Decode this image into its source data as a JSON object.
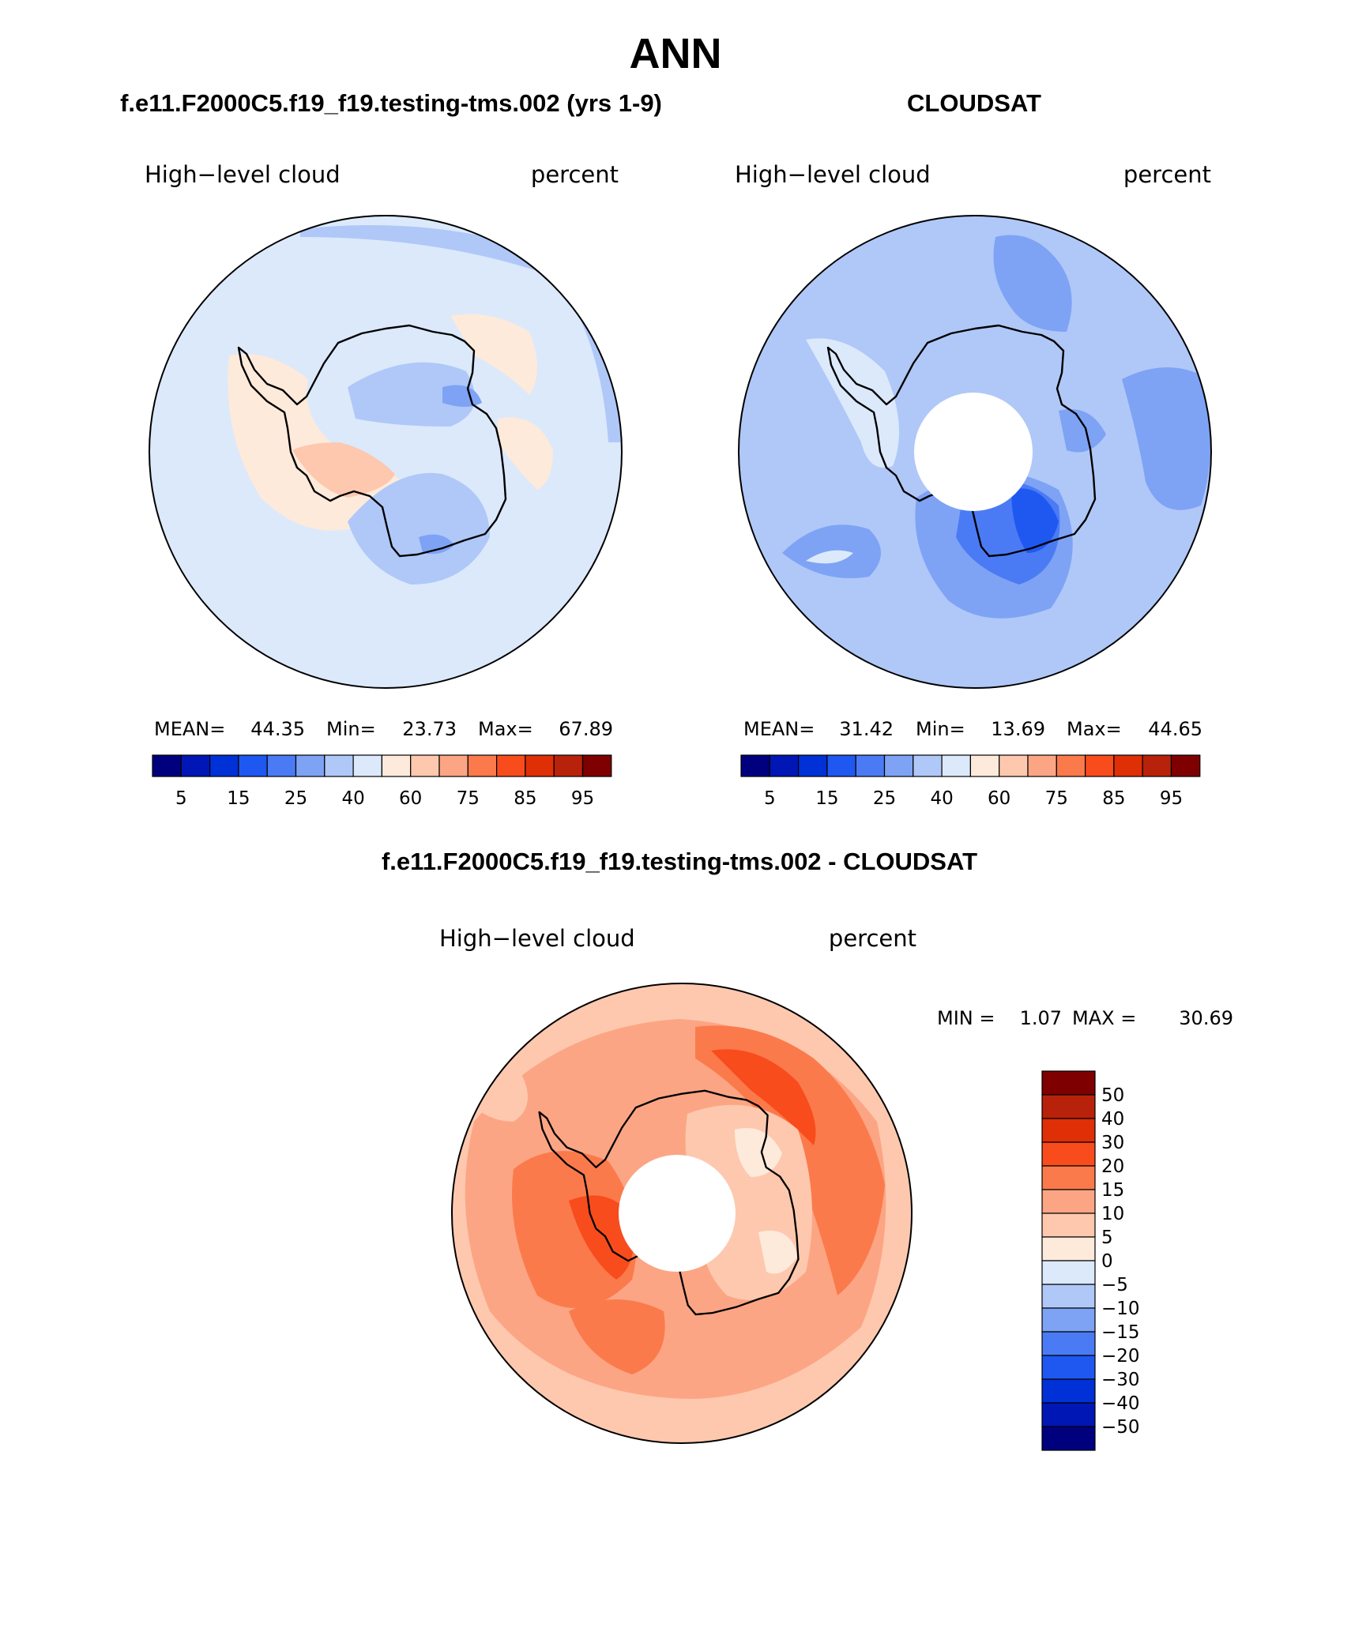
{
  "title": "ANN",
  "panels": [
    {
      "heading": "f.e11.F2000C5.f19_f19.testing-tms.002 (yrs 1-9)",
      "left_label": "High−level cloud",
      "right_label": "percent",
      "stats": {
        "mean_label": "MEAN=",
        "mean": "44.35",
        "min_label": "Min=",
        "min": "23.73",
        "max_label": "Max=",
        "max": "67.89"
      },
      "colorbar": {
        "colors": [
          "#00007f",
          "#0017b5",
          "#0031d6",
          "#1f58f1",
          "#4b7bf4",
          "#7ea3f5",
          "#b0c8f8",
          "#dbe9fb",
          "#feeadb",
          "#fdc8ae",
          "#fca584",
          "#fb7a4b",
          "#f84c1d",
          "#df2f06",
          "#b8220b",
          "#7f0000"
        ],
        "tick_labels": [
          "5",
          "15",
          "25",
          "40",
          "60",
          "75",
          "85",
          "95"
        ]
      }
    },
    {
      "heading": "CLOUDSAT",
      "left_label": "High−level cloud",
      "right_label": "percent",
      "stats": {
        "mean_label": "MEAN=",
        "mean": "31.42",
        "min_label": "Min=",
        "min": "13.69",
        "max_label": "Max=",
        "max": "44.65"
      },
      "colorbar": {
        "colors": [
          "#00007f",
          "#0017b5",
          "#0031d6",
          "#1f58f1",
          "#4b7bf4",
          "#7ea3f5",
          "#b0c8f8",
          "#dbe9fb",
          "#feeadb",
          "#fdc8ae",
          "#fca584",
          "#fb7a4b",
          "#f84c1d",
          "#df2f06",
          "#b8220b",
          "#7f0000"
        ],
        "tick_labels": [
          "5",
          "15",
          "25",
          "40",
          "60",
          "75",
          "85",
          "95"
        ]
      }
    },
    {
      "heading": "f.e11.F2000C5.f19_f19.testing-tms.002 - CLOUDSAT",
      "left_label": "High−level cloud",
      "right_label": "percent",
      "stats": {
        "min_label": "MIN =",
        "min": "1.07",
        "max_label": "MAX =",
        "max": "30.69"
      },
      "colorbar": {
        "colors": [
          "#7f0000",
          "#b8220b",
          "#df2f06",
          "#f84c1d",
          "#fb7a4b",
          "#fca584",
          "#fdc8ae",
          "#feeadb",
          "#dbe9fb",
          "#b0c8f8",
          "#7ea3f5",
          "#4b7bf4",
          "#1f58f1",
          "#0031d6",
          "#0017b5",
          "#00007f"
        ],
        "tick_labels": [
          "50",
          "40",
          "30",
          "20",
          "15",
          "10",
          "5",
          "0",
          "−5",
          "−10",
          "−15",
          "−20",
          "−30",
          "−40",
          "−50"
        ]
      }
    }
  ],
  "map_colors": {
    "model_background": "#dbe9fb",
    "model_low": "#b0c8f8",
    "model_lower": "#7ea3f5",
    "model_high": "#feeadb",
    "model_higher": "#fdc8ae",
    "obs_background": "#b0c8f8",
    "obs_low": "#7ea3f5",
    "obs_lower": "#4b7bf4",
    "obs_lowest": "#1f58f1",
    "obs_high": "#dbe9fb",
    "diff_background": "#fdc8ae",
    "diff_mid": "#fca584",
    "diff_high": "#fb7a4b",
    "diff_higher": "#f84c1d",
    "diff_low": "#feeadb",
    "missing": "#ffffff"
  }
}
